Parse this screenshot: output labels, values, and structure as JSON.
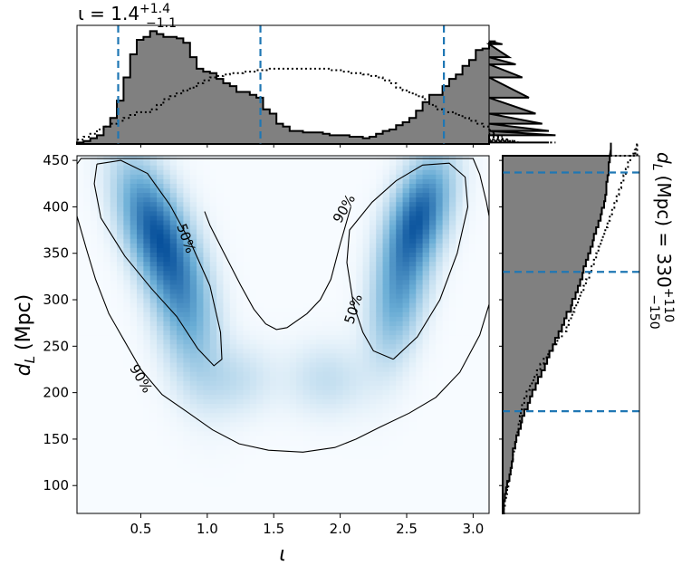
{
  "colors": {
    "hist_fill": "#808080",
    "hist_edge": "#000000",
    "credible_line": "#1f77b4",
    "density_low": "#f7fbff",
    "density_high": "#08519c",
    "contour": "#000000"
  },
  "top_title": {
    "symbol": "ι = 1.4",
    "sup": "+1.4",
    "sub": "−1.1"
  },
  "right_title": {
    "symbol": "d",
    "symbol_sub": "L",
    "unit": "(Mpc) = 330",
    "sup": "+110",
    "sub": "−150"
  },
  "chart_data": [
    {
      "type": "heatmap",
      "id": "joint",
      "xlabel": "ι",
      "ylabel": "d",
      "ylabel_sub": "L",
      "ylabel_unit": "(Mpc)",
      "xlim": [
        0.02,
        3.12
      ],
      "ylim": [
        70,
        455
      ],
      "xticks": [
        0.5,
        1.0,
        1.5,
        2.0,
        2.5,
        3.0
      ],
      "xtick_labels": [
        "0.5",
        "1.0",
        "1.5",
        "2.0",
        "2.5",
        "3.0"
      ],
      "yticks": [
        100,
        150,
        200,
        250,
        300,
        350,
        400,
        450
      ],
      "ytick_labels": [
        "100",
        "150",
        "200",
        "250",
        "300",
        "350",
        "400",
        "450"
      ],
      "grid": false,
      "colormap": "Blues",
      "density_peaks": [
        {
          "x": 0.6,
          "y": 375,
          "sx": 0.17,
          "sy": 45,
          "rho": -0.55,
          "w": 1.0
        },
        {
          "x": 0.82,
          "y": 300,
          "sx": 0.16,
          "sy": 55,
          "rho": -0.4,
          "w": 0.55
        },
        {
          "x": 2.6,
          "y": 392,
          "sx": 0.15,
          "sy": 38,
          "rho": 0.45,
          "w": 0.95
        },
        {
          "x": 2.45,
          "y": 315,
          "sx": 0.14,
          "sy": 50,
          "rho": 0.4,
          "w": 0.6
        },
        {
          "x": 1.2,
          "y": 215,
          "sx": 0.2,
          "sy": 25,
          "rho": 0.0,
          "w": 0.16
        },
        {
          "x": 1.9,
          "y": 215,
          "sx": 0.2,
          "sy": 25,
          "rho": 0.0,
          "w": 0.16
        }
      ],
      "contours": [
        {
          "label": "50%",
          "paths": [
            [
              [
                0.17,
                446
              ],
              [
                0.35,
                450
              ],
              [
                0.55,
                436
              ],
              [
                0.72,
                402
              ],
              [
                0.88,
                360
              ],
              [
                1.02,
                315
              ],
              [
                1.1,
                265
              ],
              [
                1.11,
                236
              ],
              [
                1.05,
                229
              ],
              [
                0.93,
                247
              ],
              [
                0.77,
                282
              ],
              [
                0.58,
                312
              ],
              [
                0.38,
                347
              ],
              [
                0.2,
                388
              ],
              [
                0.15,
                425
              ],
              [
                0.17,
                446
              ]
            ],
            [
              [
                2.4,
                236
              ],
              [
                2.58,
                260
              ],
              [
                2.75,
                300
              ],
              [
                2.88,
                350
              ],
              [
                2.96,
                400
              ],
              [
                2.94,
                432
              ],
              [
                2.82,
                447
              ],
              [
                2.62,
                445
              ],
              [
                2.42,
                428
              ],
              [
                2.24,
                405
              ],
              [
                2.07,
                375
              ],
              [
                2.05,
                340
              ],
              [
                2.1,
                295
              ],
              [
                2.17,
                265
              ],
              [
                2.25,
                245
              ],
              [
                2.4,
                236
              ]
            ]
          ],
          "label_positions": [
            {
              "x": 0.84,
              "y": 366,
              "rot": 70
            },
            {
              "x": 2.1,
              "y": 290,
              "rot": -72
            }
          ]
        },
        {
          "label": "90%",
          "paths": [
            [
              [
                0.02,
                390
              ],
              [
                0.09,
                355
              ],
              [
                0.16,
                322
              ],
              [
                0.26,
                285
              ],
              [
                0.38,
                255
              ],
              [
                0.5,
                225
              ],
              [
                0.66,
                198
              ],
              [
                0.84,
                180
              ],
              [
                1.04,
                160
              ],
              [
                1.24,
                145
              ],
              [
                1.46,
                138
              ],
              [
                1.72,
                136
              ],
              [
                1.96,
                141
              ],
              [
                2.12,
                150
              ],
              [
                2.3,
                163
              ],
              [
                2.52,
                178
              ],
              [
                2.72,
                195
              ],
              [
                2.9,
                222
              ],
              [
                3.05,
                262
              ],
              [
                3.12,
                295
              ]
            ],
            [
              [
                0.02,
                446
              ],
              [
                0.05,
                452
              ],
              [
                3.0,
                452
              ],
              [
                3.05,
                435
              ],
              [
                3.1,
                405
              ],
              [
                3.12,
                390
              ]
            ],
            [
              [
                2.08,
                400
              ],
              [
                2.0,
                360
              ],
              [
                1.93,
                322
              ],
              [
                1.85,
                300
              ],
              [
                1.75,
                285
              ],
              [
                1.6,
                270
              ],
              [
                1.52,
                268
              ],
              [
                1.44,
                274
              ],
              [
                1.35,
                290
              ],
              [
                1.25,
                316
              ],
              [
                1.12,
                352
              ],
              [
                1.02,
                380
              ],
              [
                0.98,
                395
              ]
            ]
          ],
          "label_positions": [
            {
              "x": 0.5,
              "y": 215,
              "rot": 60
            },
            {
              "x": 2.03,
              "y": 398,
              "rot": -60
            }
          ]
        }
      ]
    },
    {
      "type": "bar",
      "id": "iota_marginal",
      "xlim": [
        0.02,
        3.12
      ],
      "credible_lines": [
        0.33,
        1.4,
        2.78
      ],
      "bin_width": 0.05,
      "x_start": 0.02,
      "posterior_counts": [
        1,
        2,
        4,
        6,
        12,
        18,
        30,
        46,
        62,
        72,
        74,
        78,
        76,
        74,
        74,
        73,
        70,
        60,
        52,
        50,
        49,
        45,
        42,
        40,
        36,
        36,
        34,
        32,
        24,
        21,
        14,
        12,
        9,
        9,
        8,
        8,
        8,
        7,
        6,
        6,
        6,
        5,
        5,
        4,
        5,
        7,
        9,
        10,
        13,
        15,
        18,
        23,
        29,
        34,
        34,
        40,
        45,
        48,
        54,
        58,
        65,
        66,
        70,
        71,
        69,
        60,
        55,
        46,
        32,
        21,
        14,
        9,
        6
      ],
      "prior_counts": [
        3,
        5,
        7,
        10,
        12,
        14,
        16,
        18,
        20,
        22,
        22,
        24,
        27,
        31,
        33,
        35,
        37,
        39,
        42,
        44,
        46,
        47,
        48,
        49,
        49,
        50,
        50,
        51,
        51,
        52,
        52,
        52,
        52,
        52,
        52,
        52,
        52,
        52,
        51,
        51,
        50,
        49,
        49,
        48,
        47,
        46,
        44,
        42,
        39,
        37,
        35,
        33,
        31,
        27,
        24,
        22,
        22,
        20,
        18,
        16,
        14,
        12,
        10,
        7,
        5,
        3,
        2,
        1,
        1,
        1,
        1,
        1,
        1
      ],
      "max_count": 82
    },
    {
      "type": "bar",
      "id": "dl_marginal",
      "ylim": [
        70,
        455
      ],
      "credible_lines": [
        180,
        330,
        437
      ],
      "bin_width": 7,
      "y_start": 70,
      "posterior_counts": [
        1,
        1,
        2,
        3,
        4,
        6,
        7,
        8,
        9,
        9,
        11,
        12,
        14,
        16,
        17,
        19,
        22,
        24,
        26,
        29,
        31,
        34,
        37,
        39,
        41,
        44,
        46,
        49,
        52,
        54,
        56,
        60,
        61,
        64,
        66,
        68,
        70,
        71,
        73,
        75,
        77,
        79,
        80,
        82,
        84,
        86,
        87,
        89,
        90,
        91,
        91,
        92,
        93,
        93,
        94,
        94,
        95,
        95
      ],
      "prior_counts": [
        1,
        2,
        3,
        4,
        5,
        6,
        7,
        8,
        9,
        10,
        11,
        12,
        13,
        14,
        15,
        16,
        17,
        19,
        21,
        24,
        27,
        30,
        33,
        36,
        40,
        44,
        48,
        52,
        56,
        58,
        61,
        63,
        66,
        68,
        71,
        73,
        76,
        78,
        80,
        82,
        84,
        86,
        88,
        90,
        92,
        94,
        96,
        98,
        100,
        102,
        104,
        106,
        108,
        110,
        112,
        114,
        116,
        118
      ],
      "max_count": 120
    }
  ]
}
